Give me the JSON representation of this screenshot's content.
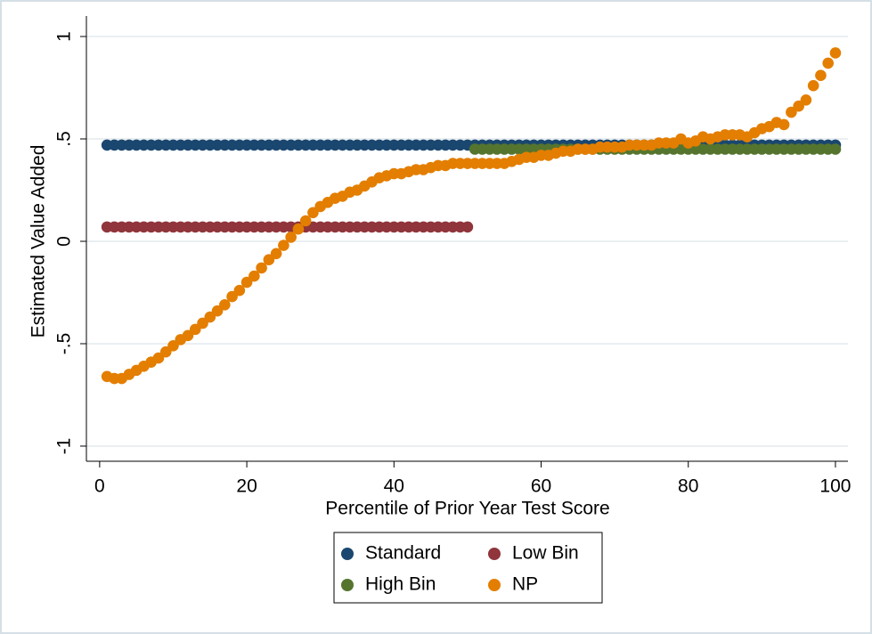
{
  "chart_data": {
    "type": "scatter",
    "xlabel": "Percentile of Prior Year Test Score",
    "ylabel": "Estimated Value Added",
    "x": [
      1,
      2,
      3,
      4,
      5,
      6,
      7,
      8,
      9,
      10,
      11,
      12,
      13,
      14,
      15,
      16,
      17,
      18,
      19,
      20,
      21,
      22,
      23,
      24,
      25,
      26,
      27,
      28,
      29,
      30,
      31,
      32,
      33,
      34,
      35,
      36,
      37,
      38,
      39,
      40,
      41,
      42,
      43,
      44,
      45,
      46,
      47,
      48,
      49,
      50,
      51,
      52,
      53,
      54,
      55,
      56,
      57,
      58,
      59,
      60,
      61,
      62,
      63,
      64,
      65,
      66,
      67,
      68,
      69,
      70,
      71,
      72,
      73,
      74,
      75,
      76,
      77,
      78,
      79,
      80,
      81,
      82,
      83,
      84,
      85,
      86,
      87,
      88,
      89,
      90,
      91,
      92,
      93,
      94,
      95,
      96,
      97,
      98,
      99,
      100
    ],
    "series": [
      {
        "name": "Standard",
        "color": "#1a476f",
        "values": [
          0.47,
          0.47,
          0.47,
          0.47,
          0.47,
          0.47,
          0.47,
          0.47,
          0.47,
          0.47,
          0.47,
          0.47,
          0.47,
          0.47,
          0.47,
          0.47,
          0.47,
          0.47,
          0.47,
          0.47,
          0.47,
          0.47,
          0.47,
          0.47,
          0.47,
          0.47,
          0.47,
          0.47,
          0.47,
          0.47,
          0.47,
          0.47,
          0.47,
          0.47,
          0.47,
          0.47,
          0.47,
          0.47,
          0.47,
          0.47,
          0.47,
          0.47,
          0.47,
          0.47,
          0.47,
          0.47,
          0.47,
          0.47,
          0.47,
          0.47,
          0.47,
          0.47,
          0.47,
          0.47,
          0.47,
          0.47,
          0.47,
          0.47,
          0.47,
          0.47,
          0.47,
          0.47,
          0.47,
          0.47,
          0.47,
          0.47,
          0.47,
          0.47,
          0.47,
          0.47,
          0.47,
          0.47,
          0.47,
          0.47,
          0.47,
          0.47,
          0.47,
          0.47,
          0.47,
          0.47,
          0.47,
          0.47,
          0.47,
          0.47,
          0.47,
          0.47,
          0.47,
          0.47,
          0.47,
          0.47,
          0.47,
          0.47,
          0.47,
          0.47,
          0.47,
          0.47,
          0.47,
          0.47,
          0.47,
          0.47
        ]
      },
      {
        "name": "Low Bin",
        "color": "#90353b",
        "values": [
          0.07,
          0.07,
          0.07,
          0.07,
          0.07,
          0.07,
          0.07,
          0.07,
          0.07,
          0.07,
          0.07,
          0.07,
          0.07,
          0.07,
          0.07,
          0.07,
          0.07,
          0.07,
          0.07,
          0.07,
          0.07,
          0.07,
          0.07,
          0.07,
          0.07,
          0.07,
          0.07,
          0.07,
          0.07,
          0.07,
          0.07,
          0.07,
          0.07,
          0.07,
          0.07,
          0.07,
          0.07,
          0.07,
          0.07,
          0.07,
          0.07,
          0.07,
          0.07,
          0.07,
          0.07,
          0.07,
          0.07,
          0.07,
          0.07,
          0.07,
          null,
          null,
          null,
          null,
          null,
          null,
          null,
          null,
          null,
          null,
          null,
          null,
          null,
          null,
          null,
          null,
          null,
          null,
          null,
          null,
          null,
          null,
          null,
          null,
          null,
          null,
          null,
          null,
          null,
          null,
          null,
          null,
          null,
          null,
          null,
          null,
          null,
          null,
          null,
          null,
          null,
          null,
          null,
          null,
          null,
          null,
          null,
          null,
          null,
          null
        ]
      },
      {
        "name": "High Bin",
        "color": "#55752f",
        "values": [
          null,
          null,
          null,
          null,
          null,
          null,
          null,
          null,
          null,
          null,
          null,
          null,
          null,
          null,
          null,
          null,
          null,
          null,
          null,
          null,
          null,
          null,
          null,
          null,
          null,
          null,
          null,
          null,
          null,
          null,
          null,
          null,
          null,
          null,
          null,
          null,
          null,
          null,
          null,
          null,
          null,
          null,
          null,
          null,
          null,
          null,
          null,
          null,
          null,
          null,
          0.45,
          0.45,
          0.45,
          0.45,
          0.45,
          0.45,
          0.45,
          0.45,
          0.45,
          0.45,
          0.45,
          0.45,
          0.45,
          0.45,
          0.45,
          0.45,
          0.45,
          0.45,
          0.45,
          0.45,
          0.45,
          0.45,
          0.45,
          0.45,
          0.45,
          0.45,
          0.45,
          0.45,
          0.45,
          0.45,
          0.45,
          0.45,
          0.45,
          0.45,
          0.45,
          0.45,
          0.45,
          0.45,
          0.45,
          0.45,
          0.45,
          0.45,
          0.45,
          0.45,
          0.45,
          0.45,
          0.45,
          0.45,
          0.45,
          0.45
        ]
      },
      {
        "name": "NP",
        "color": "#e37e00",
        "values": [
          -0.66,
          -0.67,
          -0.67,
          -0.65,
          -0.63,
          -0.61,
          -0.59,
          -0.57,
          -0.54,
          -0.51,
          -0.48,
          -0.46,
          -0.43,
          -0.4,
          -0.37,
          -0.34,
          -0.31,
          -0.27,
          -0.24,
          -0.2,
          -0.17,
          -0.13,
          -0.09,
          -0.06,
          -0.02,
          0.02,
          0.06,
          0.1,
          0.14,
          0.17,
          0.19,
          0.21,
          0.22,
          0.24,
          0.25,
          0.27,
          0.29,
          0.31,
          0.32,
          0.33,
          0.33,
          0.34,
          0.35,
          0.35,
          0.36,
          0.37,
          0.37,
          0.38,
          0.38,
          0.38,
          0.38,
          0.38,
          0.38,
          0.38,
          0.38,
          0.39,
          0.4,
          0.41,
          0.41,
          0.42,
          0.42,
          0.43,
          0.44,
          0.44,
          0.45,
          0.45,
          0.45,
          0.46,
          0.46,
          0.46,
          0.46,
          0.47,
          0.47,
          0.47,
          0.47,
          0.48,
          0.48,
          0.48,
          0.5,
          0.48,
          0.49,
          0.51,
          0.5,
          0.51,
          0.52,
          0.52,
          0.52,
          0.51,
          0.53,
          0.55,
          0.56,
          0.58,
          0.57,
          0.63,
          0.66,
          0.69,
          0.76,
          0.81,
          0.87,
          0.92
        ]
      }
    ],
    "xlim": [
      -1.8,
      101.7
    ],
    "xticks": [
      0,
      20,
      40,
      60,
      80,
      100
    ],
    "ylim": [
      -1.074,
      1.1
    ],
    "yticks": [
      1,
      {
        "value": 0.5,
        "label": ".5"
      },
      0,
      {
        "value": -0.5,
        "label": "-.5"
      },
      -1
    ],
    "grid": true,
    "legend": "bottom"
  }
}
